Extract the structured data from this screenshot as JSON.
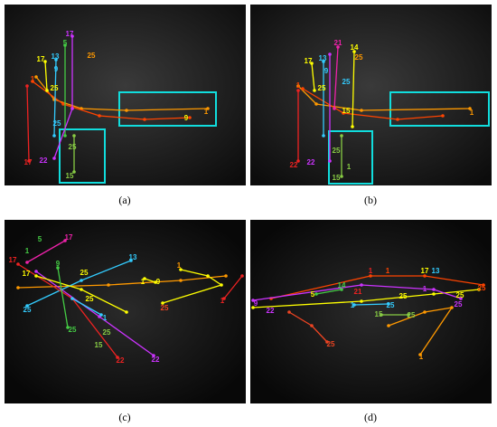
{
  "panels": [
    {
      "caption": "(a)",
      "labels": [
        "17",
        "13",
        "5",
        "9",
        "25",
        "1",
        "25",
        "17",
        "25",
        "22",
        "17",
        "15",
        "25",
        "1",
        "9"
      ]
    },
    {
      "caption": "(b)",
      "labels": [
        "17",
        "13",
        "21",
        "14",
        "25",
        "9",
        "25",
        "1",
        "25",
        "15",
        "25",
        "1",
        "15",
        "22",
        "22",
        "1"
      ]
    },
    {
      "caption": "(c)",
      "labels": [
        "1",
        "5",
        "17",
        "17",
        "17",
        "9",
        "25",
        "25",
        "13",
        "1",
        "9",
        "1",
        "25",
        "1",
        "1",
        "25",
        "25",
        "15",
        "22",
        "22",
        "25"
      ]
    },
    {
      "caption": "(d)",
      "labels": [
        "5",
        "14",
        "21",
        "25",
        "1",
        "1",
        "17",
        "13",
        "25",
        "25",
        "25",
        "1",
        "9",
        "22",
        "25",
        "25",
        "1",
        "15",
        "25",
        "1"
      ]
    }
  ]
}
